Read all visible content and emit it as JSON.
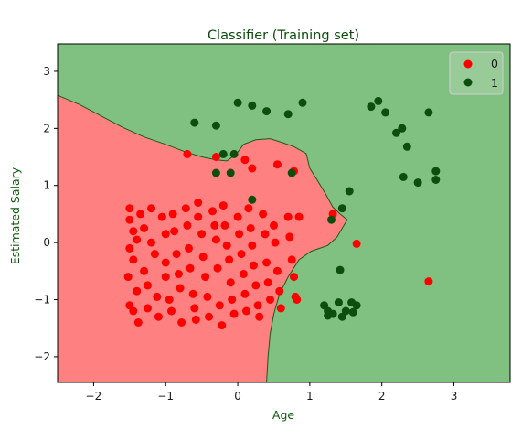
{
  "chart_data": {
    "type": "scatter",
    "title": "Classifier (Training set)",
    "xlabel": "Age",
    "ylabel": "Estimated Salary",
    "xlim": [
      -2.5,
      3.78
    ],
    "ylim": [
      -2.45,
      3.48
    ],
    "xticks": [
      -2,
      -1,
      0,
      1,
      2,
      3
    ],
    "yticks": [
      -2,
      -1,
      0,
      1,
      2,
      3
    ],
    "grid": false,
    "legend_position": "top-right",
    "colors": {
      "region_0": "#ff8080",
      "region_1": "#80c080",
      "class_0": "#ff0000",
      "class_1": "#0d4d0d",
      "boundary": "#1a5a1a"
    },
    "decision_boundary": [
      [
        -2.5,
        2.58
      ],
      [
        -2.2,
        2.42
      ],
      [
        -1.9,
        2.22
      ],
      [
        -1.6,
        2.02
      ],
      [
        -1.3,
        1.85
      ],
      [
        -1.0,
        1.72
      ],
      [
        -0.75,
        1.6
      ],
      [
        -0.5,
        1.5
      ],
      [
        -0.3,
        1.45
      ],
      [
        -0.15,
        1.43
      ],
      [
        -0.02,
        1.55
      ],
      [
        0.08,
        1.72
      ],
      [
        0.25,
        1.8
      ],
      [
        0.45,
        1.82
      ],
      [
        0.62,
        1.75
      ],
      [
        0.78,
        1.68
      ],
      [
        0.95,
        1.56
      ],
      [
        1.0,
        1.3
      ],
      [
        1.1,
        1.1
      ],
      [
        1.22,
        0.85
      ],
      [
        1.32,
        0.62
      ],
      [
        1.42,
        0.5
      ],
      [
        1.52,
        0.4
      ],
      [
        1.45,
        0.25
      ],
      [
        1.38,
        0.1
      ],
      [
        1.25,
        -0.05
      ],
      [
        1.02,
        -0.15
      ],
      [
        0.85,
        -0.3
      ],
      [
        0.7,
        -0.6
      ],
      [
        0.58,
        -0.9
      ],
      [
        0.5,
        -1.25
      ],
      [
        0.45,
        -1.6
      ],
      [
        0.42,
        -2.0
      ],
      [
        0.4,
        -2.45
      ]
    ],
    "series": [
      {
        "name": "0",
        "points": [
          [
            -1.5,
            0.6
          ],
          [
            -1.5,
            0.4
          ],
          [
            -1.45,
            0.2
          ],
          [
            -1.4,
            0.05
          ],
          [
            -1.5,
            -0.1
          ],
          [
            -1.45,
            -0.3
          ],
          [
            -1.52,
            -0.6
          ],
          [
            -1.4,
            -0.85
          ],
          [
            -1.5,
            -1.1
          ],
          [
            -1.45,
            -1.2
          ],
          [
            -1.38,
            -1.4
          ],
          [
            -1.35,
            0.5
          ],
          [
            -1.3,
            0.25
          ],
          [
            -1.3,
            -0.5
          ],
          [
            -1.25,
            -0.75
          ],
          [
            -1.25,
            -1.15
          ],
          [
            -1.2,
            0.6
          ],
          [
            -1.2,
            0.0
          ],
          [
            -1.15,
            -0.2
          ],
          [
            -1.12,
            -0.95
          ],
          [
            -1.1,
            -1.3
          ],
          [
            -1.05,
            0.45
          ],
          [
            -1.0,
            0.15
          ],
          [
            -1.0,
            -0.35
          ],
          [
            -1.0,
            -0.6
          ],
          [
            -0.95,
            -1.0
          ],
          [
            -0.92,
            -1.2
          ],
          [
            -0.9,
            0.5
          ],
          [
            -0.88,
            0.2
          ],
          [
            -0.85,
            -0.2
          ],
          [
            -0.82,
            -0.55
          ],
          [
            -0.8,
            -0.8
          ],
          [
            -0.78,
            -1.4
          ],
          [
            -0.72,
            0.6
          ],
          [
            -0.7,
            0.3
          ],
          [
            -0.68,
            -0.1
          ],
          [
            -0.66,
            -0.45
          ],
          [
            -0.62,
            -0.9
          ],
          [
            -0.6,
            -1.15
          ],
          [
            -0.58,
            -1.35
          ],
          [
            -0.55,
            0.7
          ],
          [
            -0.55,
            0.45
          ],
          [
            -0.5,
            0.15
          ],
          [
            -0.48,
            -0.25
          ],
          [
            -0.45,
            -0.6
          ],
          [
            -0.42,
            -0.95
          ],
          [
            -0.4,
            -1.3
          ],
          [
            -0.35,
            0.55
          ],
          [
            -0.32,
            0.3
          ],
          [
            -0.3,
            0.05
          ],
          [
            -0.28,
            -0.45
          ],
          [
            -0.25,
            -1.1
          ],
          [
            -0.22,
            -1.45
          ],
          [
            -0.2,
            0.65
          ],
          [
            -0.18,
            0.3
          ],
          [
            -0.15,
            -0.05
          ],
          [
            -0.12,
            -0.3
          ],
          [
            -0.1,
            -0.7
          ],
          [
            -0.08,
            -1.0
          ],
          [
            -0.05,
            -1.25
          ],
          [
            0.0,
            0.45
          ],
          [
            0.02,
            0.15
          ],
          [
            0.05,
            -0.2
          ],
          [
            0.08,
            -0.55
          ],
          [
            0.1,
            -0.9
          ],
          [
            0.12,
            -1.2
          ],
          [
            0.15,
            0.6
          ],
          [
            0.18,
            0.25
          ],
          [
            0.2,
            -0.05
          ],
          [
            0.22,
            -0.4
          ],
          [
            0.25,
            -0.75
          ],
          [
            0.28,
            -1.1
          ],
          [
            0.3,
            -1.3
          ],
          [
            0.35,
            0.5
          ],
          [
            0.38,
            0.15
          ],
          [
            0.4,
            -0.35
          ],
          [
            0.42,
            -0.7
          ],
          [
            0.45,
            -1.0
          ],
          [
            0.5,
            0.3
          ],
          [
            0.52,
            0.0
          ],
          [
            0.55,
            -0.5
          ],
          [
            0.58,
            -0.85
          ],
          [
            0.6,
            -1.15
          ],
          [
            0.7,
            0.45
          ],
          [
            0.72,
            0.1
          ],
          [
            0.75,
            -0.3
          ],
          [
            0.78,
            -0.6
          ],
          [
            0.8,
            -0.95
          ],
          [
            0.85,
            0.45
          ],
          [
            0.82,
            -1.0
          ],
          [
            -0.7,
            1.55
          ],
          [
            -0.3,
            1.5
          ],
          [
            0.1,
            1.45
          ],
          [
            0.2,
            1.3
          ],
          [
            0.55,
            1.37
          ],
          [
            0.78,
            1.25
          ],
          [
            1.32,
            0.5
          ],
          [
            1.65,
            -0.02
          ],
          [
            2.65,
            -0.68
          ]
        ]
      },
      {
        "name": "1",
        "points": [
          [
            -0.6,
            2.1
          ],
          [
            -0.3,
            2.05
          ],
          [
            -0.2,
            1.55
          ],
          [
            -0.05,
            1.55
          ],
          [
            -0.3,
            1.22
          ],
          [
            -0.1,
            1.22
          ],
          [
            0.2,
            0.75
          ],
          [
            0.0,
            2.45
          ],
          [
            0.2,
            2.4
          ],
          [
            0.4,
            2.3
          ],
          [
            0.7,
            2.25
          ],
          [
            0.9,
            2.45
          ],
          [
            0.75,
            1.22
          ],
          [
            1.3,
            0.4
          ],
          [
            1.45,
            0.6
          ],
          [
            1.55,
            0.9
          ],
          [
            1.42,
            -0.48
          ],
          [
            1.2,
            -1.1
          ],
          [
            1.25,
            -1.2
          ],
          [
            1.25,
            -1.28
          ],
          [
            1.32,
            -1.25
          ],
          [
            1.4,
            -1.05
          ],
          [
            1.45,
            -1.3
          ],
          [
            1.5,
            -1.2
          ],
          [
            1.58,
            -1.05
          ],
          [
            1.65,
            -1.1
          ],
          [
            1.6,
            -1.22
          ],
          [
            1.85,
            2.38
          ],
          [
            1.95,
            2.48
          ],
          [
            2.05,
            2.28
          ],
          [
            2.2,
            1.92
          ],
          [
            2.28,
            2.0
          ],
          [
            2.35,
            1.68
          ],
          [
            2.3,
            1.15
          ],
          [
            2.5,
            1.05
          ],
          [
            2.65,
            2.28
          ],
          [
            2.75,
            1.25
          ],
          [
            2.75,
            1.1
          ]
        ]
      }
    ]
  }
}
